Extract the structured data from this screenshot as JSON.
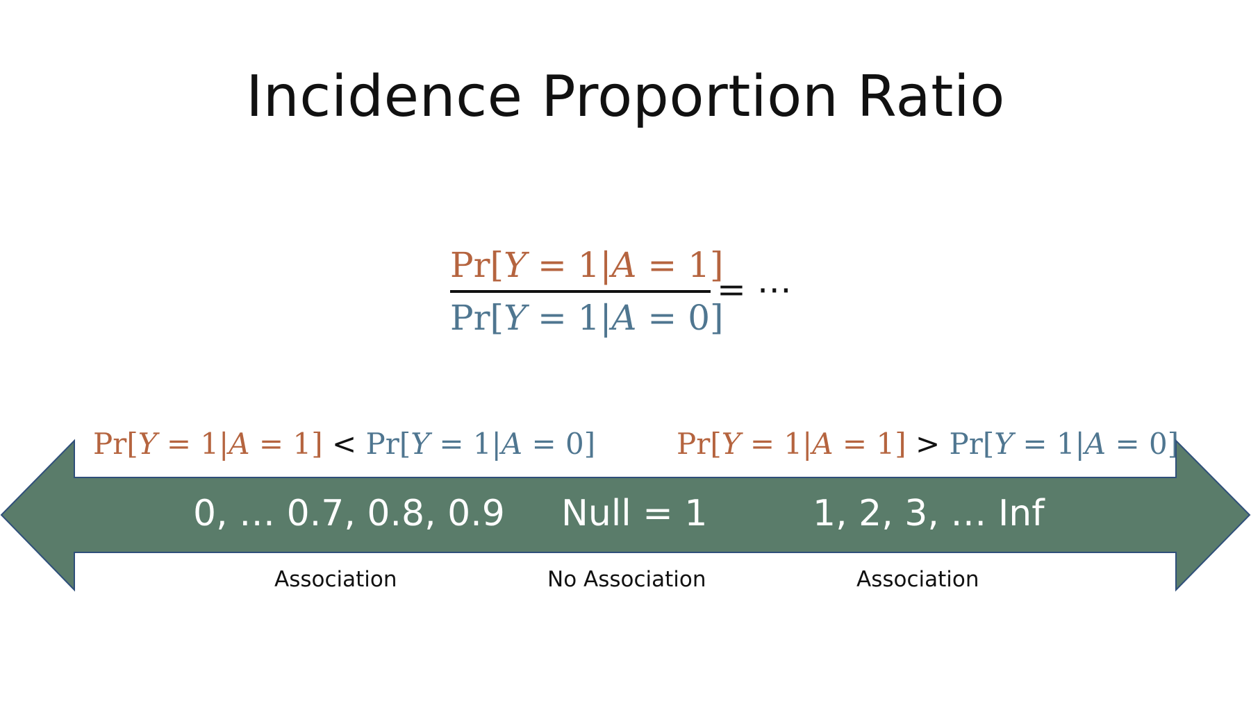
{
  "title": "Incidence Proportion Ratio",
  "formula": {
    "numerator": {
      "fn": "Pr",
      "lb": "[",
      "var1": "Y",
      "eq1": " = 1|",
      "var2": "A",
      "eq2": " = 1",
      "rb": "]"
    },
    "denominator": {
      "fn": "Pr",
      "lb": "[",
      "var1": "Y",
      "eq1": " = 1|",
      "var2": "A",
      "eq2": " = 0",
      "rb": "]"
    },
    "tail": "= ⋯"
  },
  "conditions": {
    "left": {
      "a": {
        "fn": "Pr",
        "lb": "[",
        "var1": "Y",
        "eq1": " = 1|",
        "var2": "A",
        "eq2": " = 1",
        "rb": "]"
      },
      "op": "<",
      "b": {
        "fn": "Pr",
        "lb": "[",
        "var1": "Y",
        "eq1": " = 1|",
        "var2": "A",
        "eq2": " = 0",
        "rb": "]"
      }
    },
    "right": {
      "a": {
        "fn": "Pr",
        "lb": "[",
        "var1": "Y",
        "eq1": " = 1|",
        "var2": "A",
        "eq2": " = 1",
        "rb": "]"
      },
      "op": ">",
      "b": {
        "fn": "Pr",
        "lb": "[",
        "var1": "Y",
        "eq1": " = 1|",
        "var2": "A",
        "eq2": " = 0",
        "rb": "]"
      }
    }
  },
  "scale": {
    "left": "0, … 0.7, 0.8, 0.9",
    "middle": "Null = 1",
    "right": "1, 2, 3, … Inf"
  },
  "labels": {
    "left": "Association",
    "middle": "No Association",
    "right": "Association"
  },
  "colors": {
    "arrow_fill": "#5a7c6a",
    "arrow_stroke": "#2f4f7a",
    "exposed": "#b5643f",
    "unexposed": "#4f7690"
  }
}
